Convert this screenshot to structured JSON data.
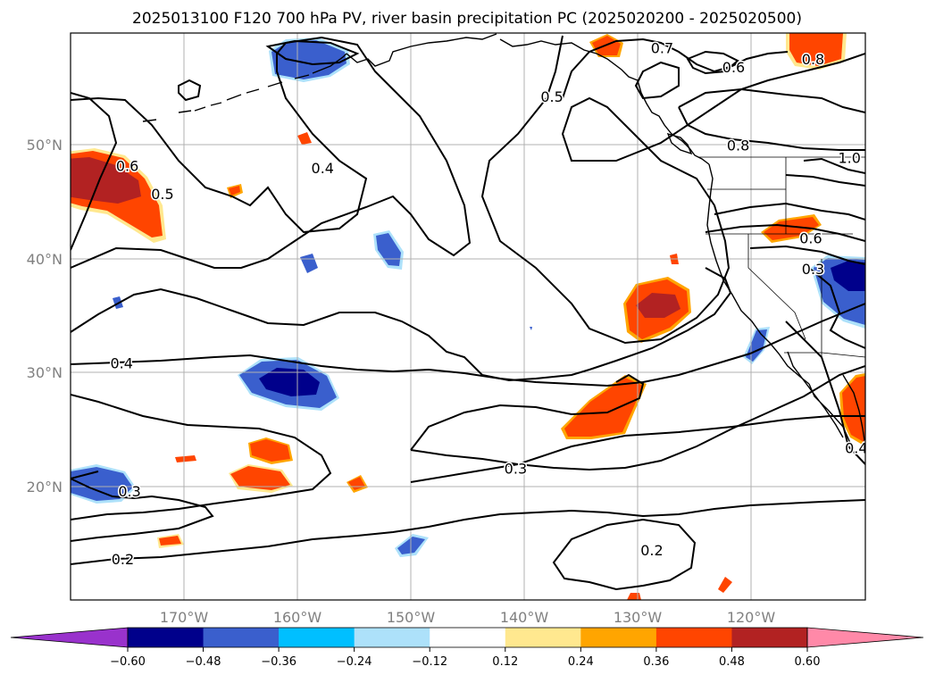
{
  "title": "2025013100 F120 700 hPa PV, river basin precipitation PC (2025020200 - 2025020500)",
  "map": {
    "lon_range": [
      -180,
      -110
    ],
    "lat_range": [
      10,
      60
    ],
    "lat_ticks": [
      {
        "lat": 50,
        "label": "50°N"
      },
      {
        "lat": 40,
        "label": "40°N"
      },
      {
        "lat": 30,
        "label": "30°N"
      },
      {
        "lat": 20,
        "label": "20°N"
      }
    ],
    "lon_ticks": [
      {
        "lon": -170,
        "label": "170°W"
      },
      {
        "lon": -160,
        "label": "160°W"
      },
      {
        "lon": -150,
        "label": "150°W"
      },
      {
        "lon": -140,
        "label": "140°W"
      },
      {
        "lon": -130,
        "label": "130°W"
      },
      {
        "lon": -120,
        "label": "120°W"
      }
    ],
    "grid": true,
    "pv_contour_labels": [
      {
        "text": "0.6",
        "lon": -175.0,
        "lat": 48.2
      },
      {
        "text": "0.5",
        "lon": -171.9,
        "lat": 45.7
      },
      {
        "text": "0.4",
        "lon": -157.8,
        "lat": 48.0
      },
      {
        "text": "0.5",
        "lon": -137.6,
        "lat": 54.3
      },
      {
        "text": "0.7",
        "lon": -127.9,
        "lat": 58.6
      },
      {
        "text": "0.6",
        "lon": -121.6,
        "lat": 56.9
      },
      {
        "text": "0.8",
        "lon": -114.6,
        "lat": 57.6
      },
      {
        "text": "0.8",
        "lon": -121.2,
        "lat": 50.0
      },
      {
        "text": "1.0",
        "lon": -111.4,
        "lat": 48.9
      },
      {
        "text": "0.6",
        "lon": -114.8,
        "lat": 41.8
      },
      {
        "text": "0.3",
        "lon": -114.6,
        "lat": 39.1
      },
      {
        "text": "0.4",
        "lon": -175.5,
        "lat": 30.8
      },
      {
        "text": "0.3",
        "lon": -174.8,
        "lat": 19.5
      },
      {
        "text": "0.3",
        "lon": -140.8,
        "lat": 21.5
      },
      {
        "text": "0.2",
        "lon": -175.4,
        "lat": 13.5
      },
      {
        "text": "0.2",
        "lon": -128.8,
        "lat": 14.3
      },
      {
        "text": "0.4",
        "lon": -110.8,
        "lat": 23.3
      }
    ]
  },
  "chart_data": {
    "type": "contour",
    "field_contours": "700 hPa PV",
    "field_shaded": "river basin precipitation PC",
    "contour_levels": [
      0.2,
      0.3,
      0.4,
      0.5,
      0.6,
      0.7,
      0.8,
      1.0
    ],
    "shading_thresholds": [
      -0.6,
      -0.48,
      -0.36,
      -0.24,
      -0.12,
      0.12,
      0.24,
      0.36,
      0.48,
      0.6
    ],
    "shading_colors": [
      "#9932CC",
      "#00008B",
      "#3A5FCD",
      "#00BFFF",
      "#ADE1FA",
      "#FFFFFF",
      "#FFE88F",
      "#FFA500",
      "#FF4500",
      "#B22222",
      "#FF89A8"
    ],
    "colorbar_extend": "both",
    "colorbar_tick_labels": [
      "−0.60",
      "−0.48",
      "−0.36",
      "−0.24",
      "−0.12",
      "0.12",
      "0.24",
      "0.36",
      "0.48",
      "0.60"
    ]
  }
}
